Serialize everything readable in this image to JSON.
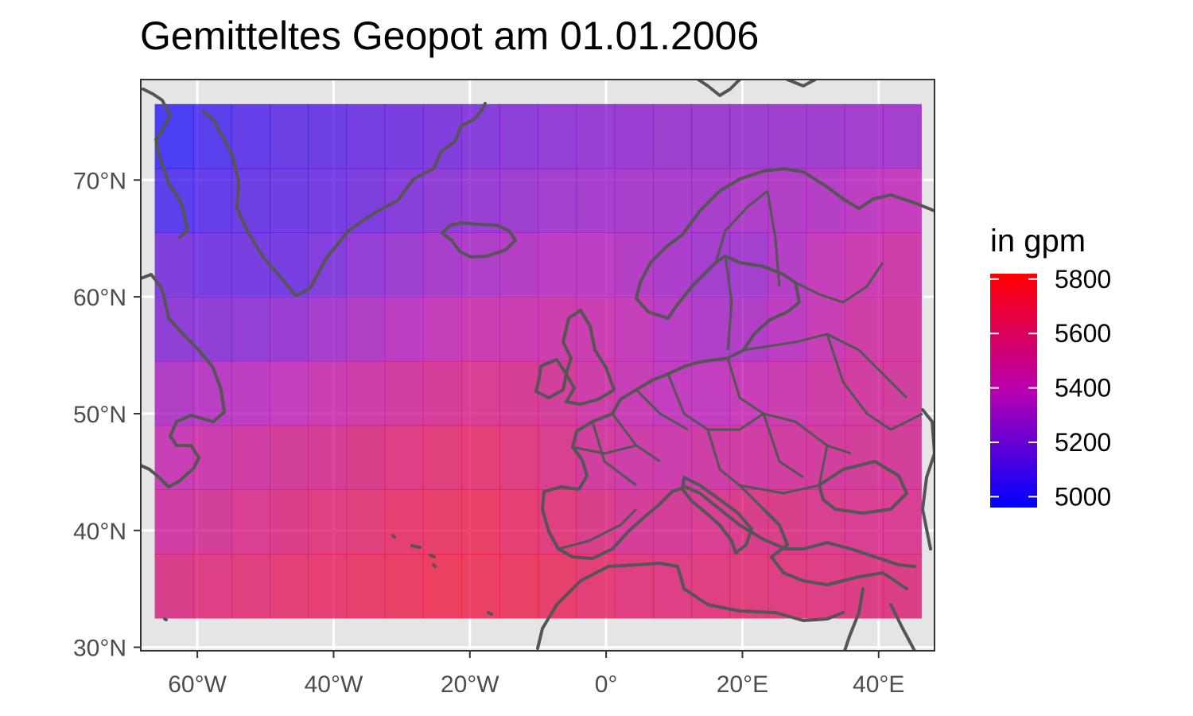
{
  "title": "Gemitteltes Geopot am 01.01.2006",
  "axes": {
    "x_ticks": [
      {
        "value": -60,
        "label": "60°W"
      },
      {
        "value": -40,
        "label": "40°W"
      },
      {
        "value": -20,
        "label": "20°W"
      },
      {
        "value": 0,
        "label": "0°"
      },
      {
        "value": 20,
        "label": "20°E"
      },
      {
        "value": 40,
        "label": "40°E"
      }
    ],
    "y_ticks": [
      {
        "value": 30,
        "label": "30°N"
      },
      {
        "value": 40,
        "label": "40°N"
      },
      {
        "value": 50,
        "label": "50°N"
      },
      {
        "value": 60,
        "label": "60°N"
      },
      {
        "value": 70,
        "label": "70°N"
      }
    ],
    "xlim": [
      -68.3,
      48.2
    ],
    "ylim": [
      29.7,
      78.6
    ]
  },
  "legend": {
    "title": "in gpm",
    "ticks": [
      5800,
      5600,
      5400,
      5200,
      5000
    ],
    "range": [
      4960,
      5820
    ],
    "color_low": "#0000ff",
    "color_mid": "#b800b0",
    "color_high": "#ff0000"
  },
  "chart_data": {
    "type": "heatmap",
    "lon_edges": [
      -66.25,
      -60.625,
      -55,
      -49.375,
      -43.75,
      -38.125,
      -32.5,
      -26.875,
      -21.25,
      -15.625,
      -10,
      -4.375,
      1.25,
      6.875,
      12.5,
      18.125,
      23.75,
      29.375,
      35,
      40.625,
      46.25
    ],
    "lat_edges": [
      76.5,
      71,
      65.5,
      60,
      54.5,
      49,
      43.5,
      38,
      32.5
    ],
    "values": [
      [
        4990,
        5040,
        5080,
        5100,
        5110,
        5130,
        5150,
        5170,
        5190,
        5210,
        5230,
        5240,
        5250,
        5260,
        5260,
        5260,
        5270,
        5270,
        5280,
        5280
      ],
      [
        5050,
        5080,
        5110,
        5120,
        5130,
        5160,
        5190,
        5220,
        5240,
        5260,
        5280,
        5290,
        5300,
        5300,
        5300,
        5320,
        5330,
        5340,
        5370,
        5390
      ],
      [
        5170,
        5140,
        5140,
        5140,
        5180,
        5230,
        5260,
        5300,
        5320,
        5340,
        5360,
        5360,
        5340,
        5310,
        5280,
        5280,
        5340,
        5400,
        5440,
        5460
      ],
      [
        5220,
        5220,
        5230,
        5250,
        5290,
        5330,
        5370,
        5400,
        5430,
        5440,
        5450,
        5440,
        5400,
        5350,
        5320,
        5330,
        5370,
        5420,
        5470,
        5490
      ],
      [
        5330,
        5350,
        5370,
        5390,
        5430,
        5460,
        5490,
        5520,
        5540,
        5530,
        5510,
        5460,
        5420,
        5380,
        5380,
        5410,
        5440,
        5470,
        5490,
        5500
      ],
      [
        5420,
        5450,
        5480,
        5510,
        5530,
        5560,
        5590,
        5620,
        5630,
        5600,
        5550,
        5500,
        5460,
        5450,
        5470,
        5480,
        5490,
        5500,
        5510,
        5510
      ],
      [
        5480,
        5510,
        5540,
        5570,
        5600,
        5620,
        5650,
        5670,
        5680,
        5650,
        5610,
        5560,
        5520,
        5520,
        5540,
        5560,
        5560,
        5550,
        5540,
        5540
      ],
      [
        5560,
        5590,
        5610,
        5630,
        5650,
        5670,
        5690,
        5710,
        5700,
        5690,
        5670,
        5630,
        5600,
        5590,
        5600,
        5610,
        5600,
        5590,
        5580,
        5580
      ]
    ]
  }
}
